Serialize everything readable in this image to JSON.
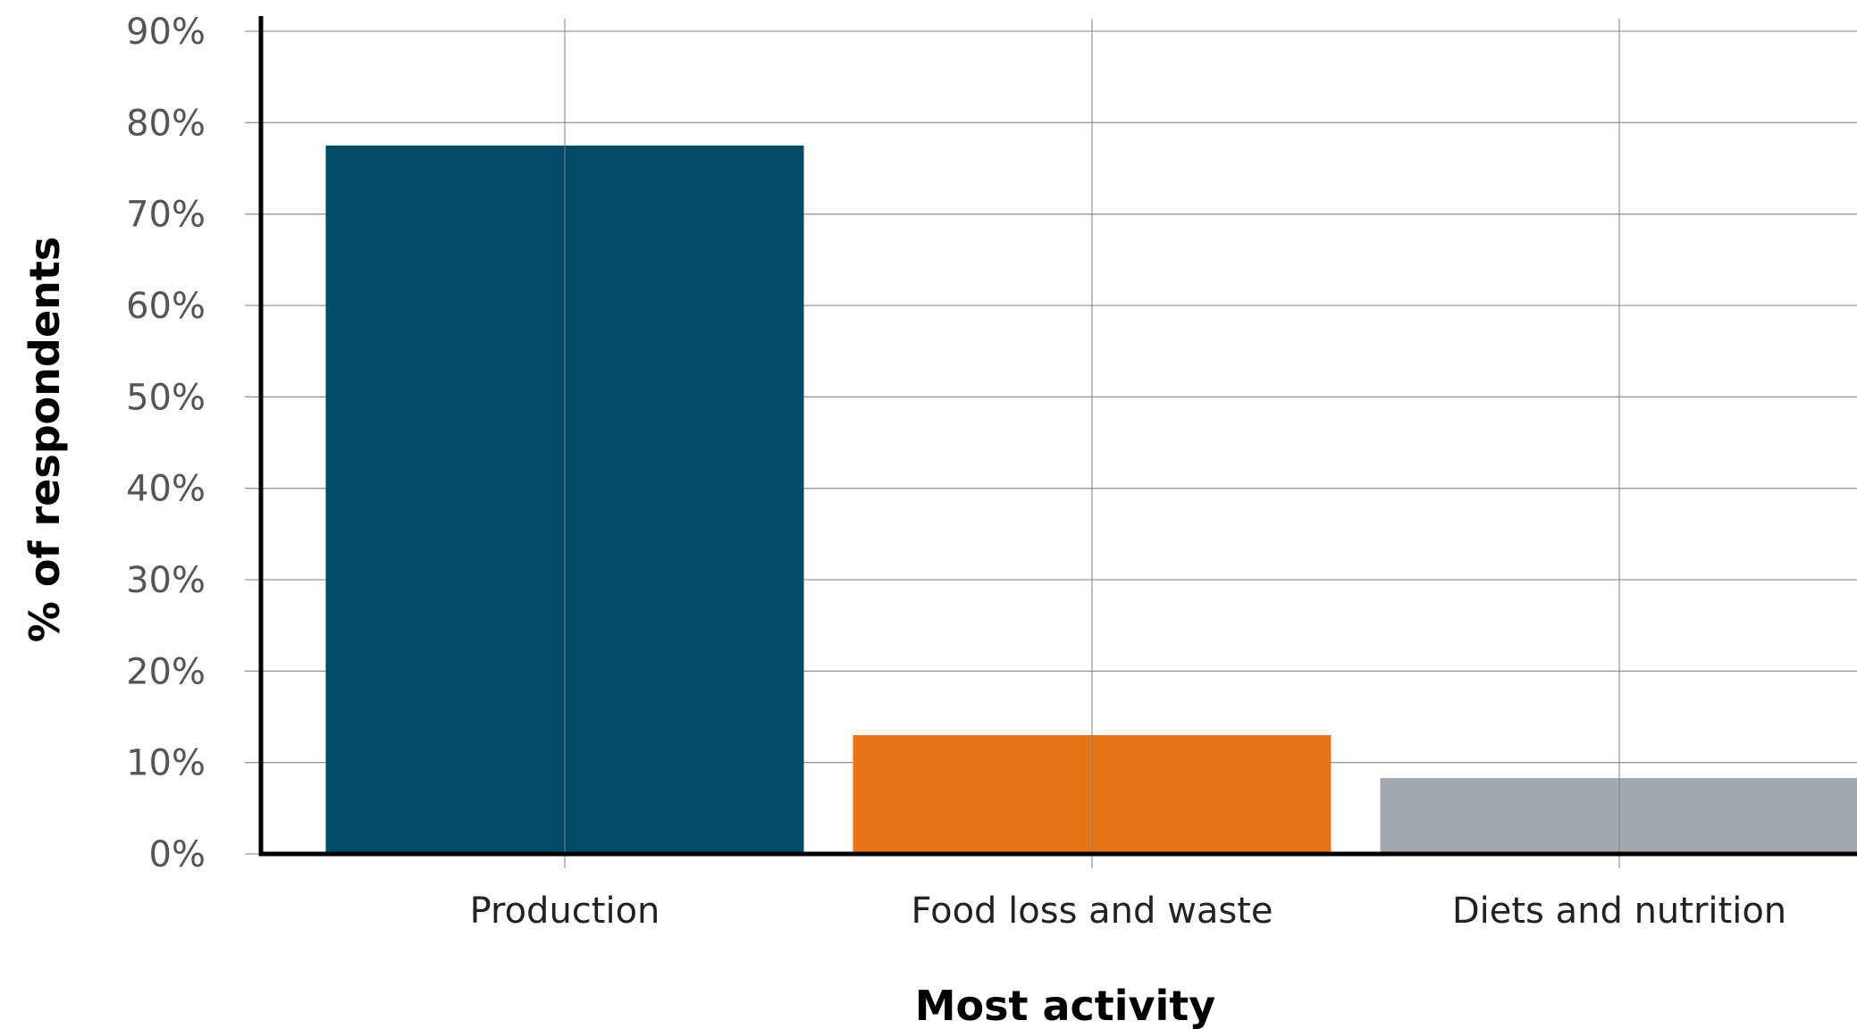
{
  "chart_data": {
    "type": "bar",
    "title": "",
    "xlabel": "Most activity",
    "ylabel": "% of respondents",
    "categories": [
      "Production",
      "Food loss and waste",
      "Diets and nutrition"
    ],
    "series": [
      {
        "values": [
          77.5,
          13,
          8.3
        ],
        "colors": [
          "#024a66",
          "#e87619",
          "#a4a9ae"
        ]
      }
    ],
    "ylim": [
      0,
      90
    ],
    "yticks": [
      0,
      10,
      20,
      30,
      40,
      50,
      60,
      70,
      80,
      90
    ],
    "ytick_labels": [
      "0%",
      "10%",
      "20%",
      "30%",
      "40%",
      "50%",
      "60%",
      "70%",
      "80%",
      "90%"
    ],
    "grid": true,
    "legend": "none"
  }
}
